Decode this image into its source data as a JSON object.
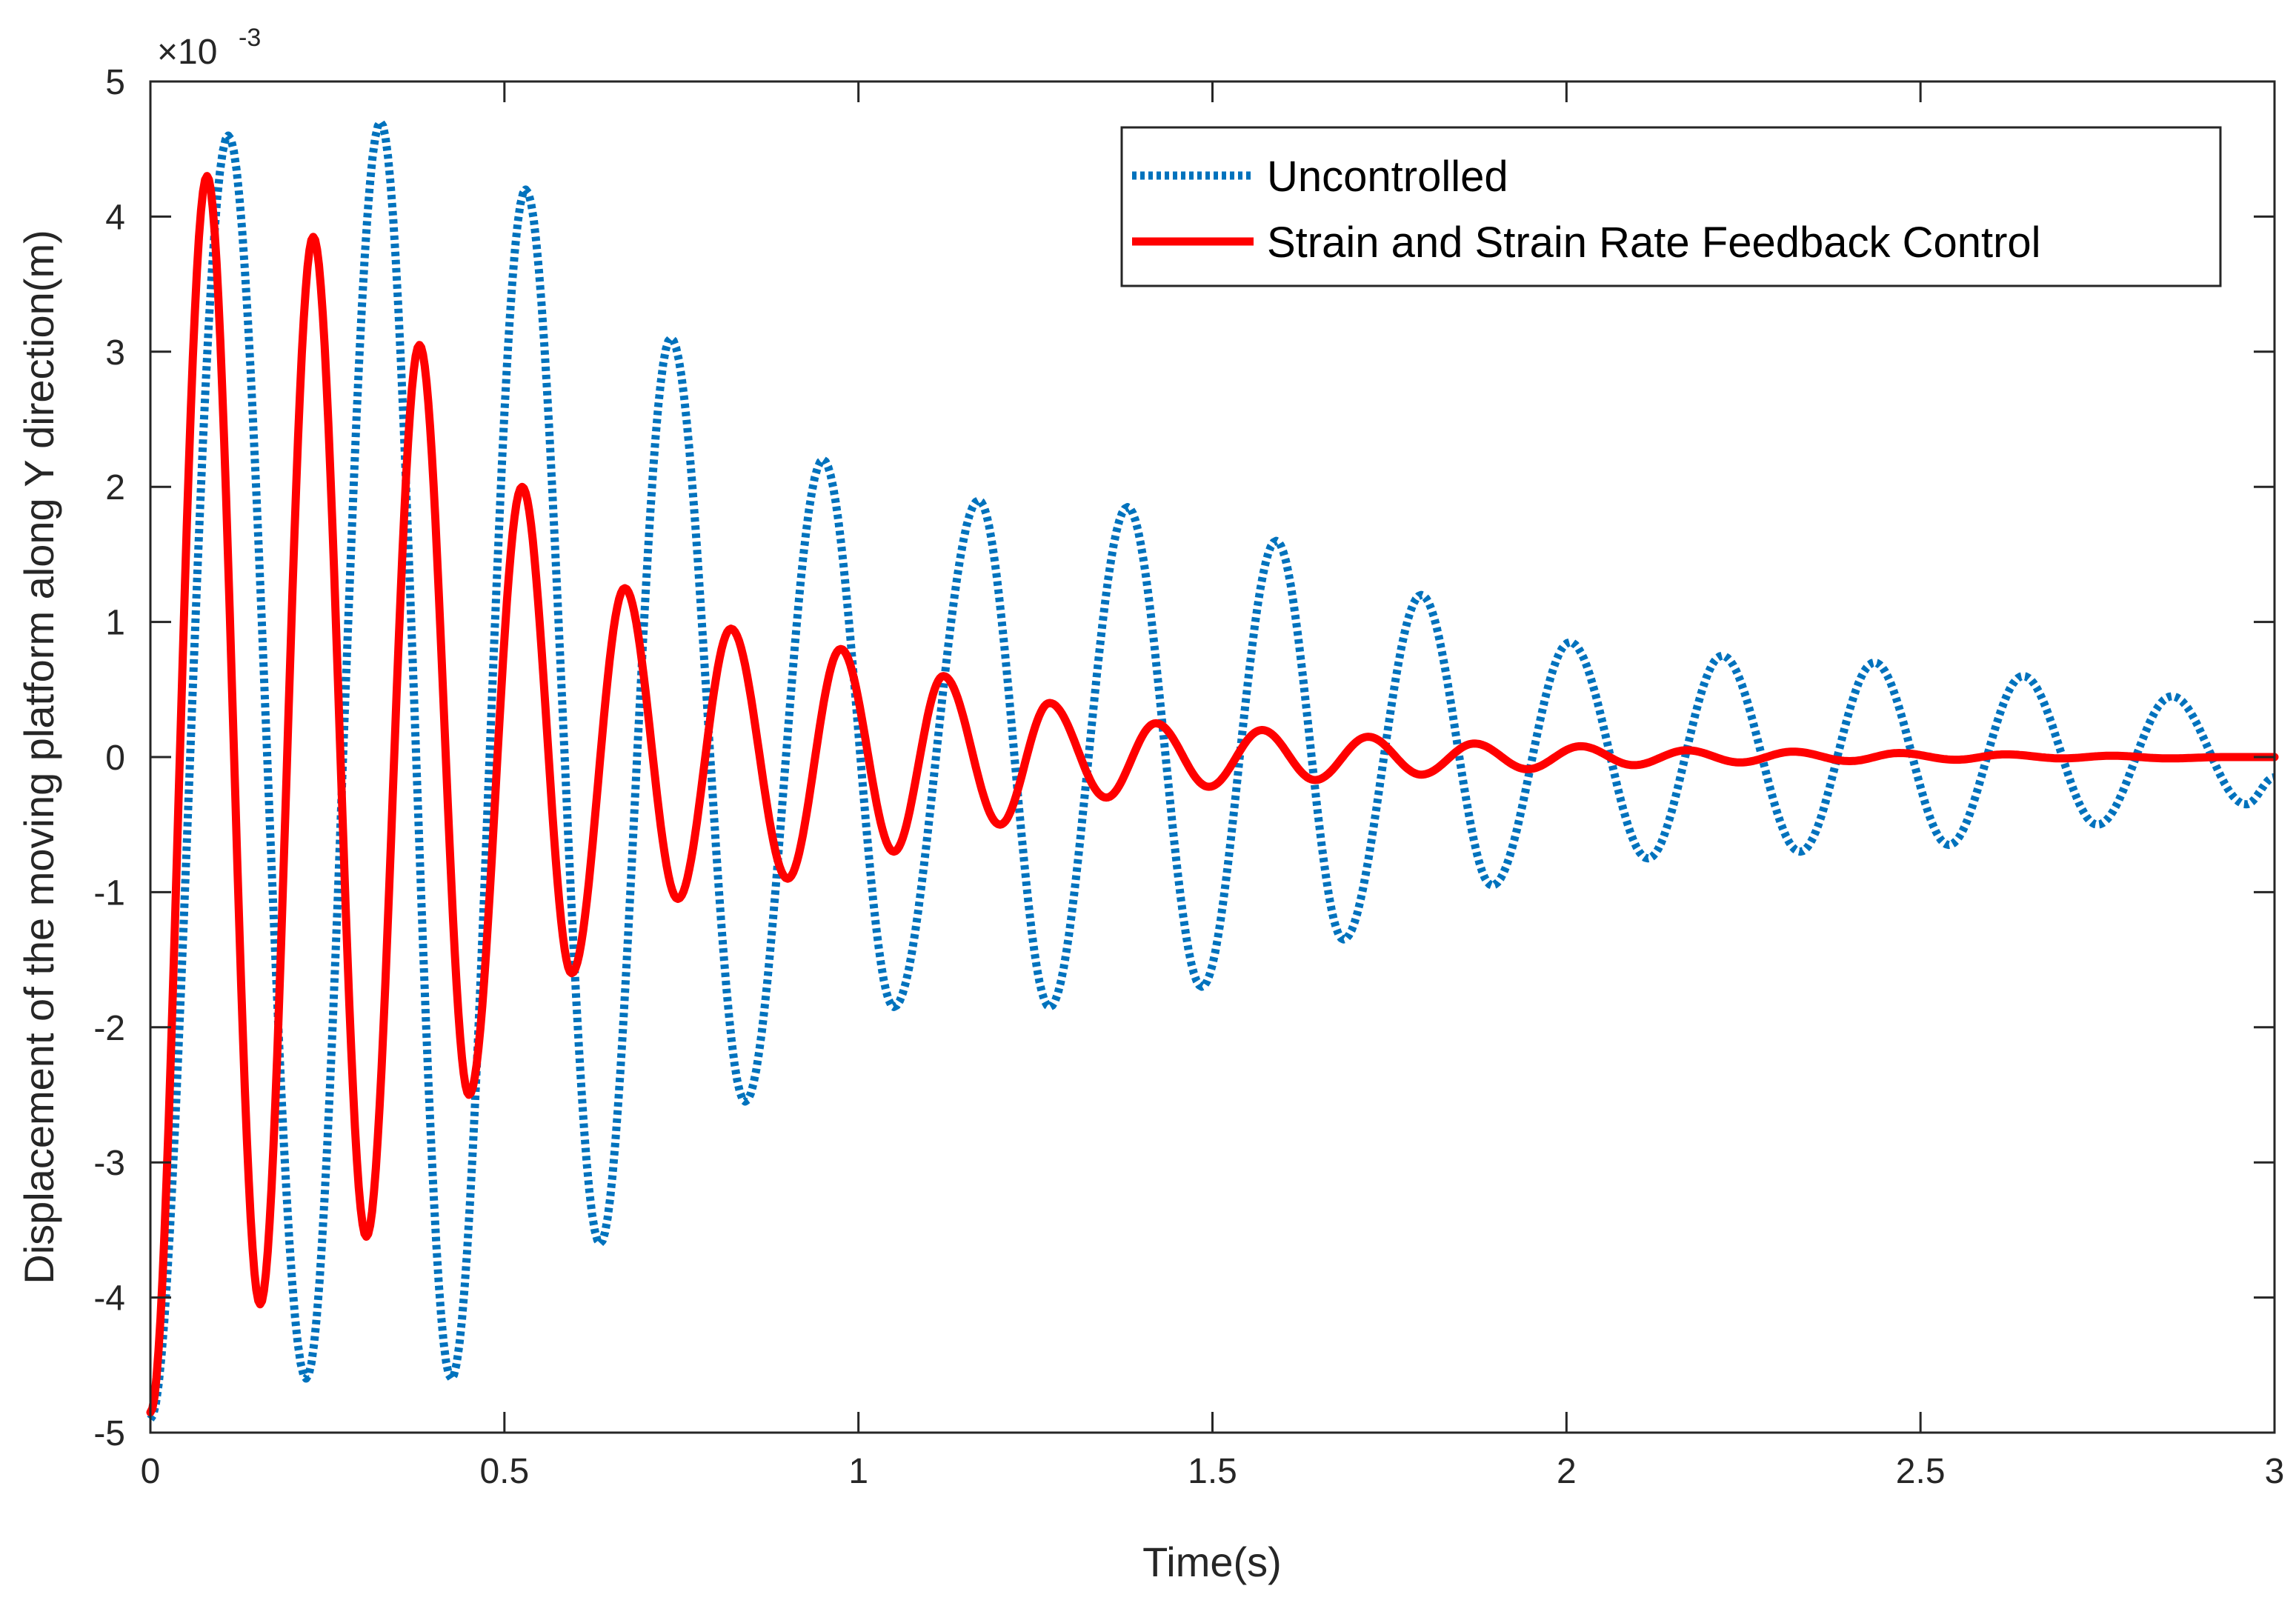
{
  "chart_data": {
    "type": "line",
    "title": "",
    "xlabel": "Time(s)",
    "ylabel": "Displacement of the moving platform along Y direction(m)",
    "y_exponent_prefix": "×10",
    "y_exponent": "-3",
    "xlim": [
      0,
      3
    ],
    "ylim": [
      -5,
      5
    ],
    "xticks": [
      0,
      0.5,
      1,
      1.5,
      2,
      2.5,
      3
    ],
    "xtick_labels": [
      "0",
      "0.5",
      "1",
      "1.5",
      "2",
      "2.5",
      "3"
    ],
    "yticks": [
      -5,
      -4,
      -3,
      -2,
      -1,
      0,
      1,
      2,
      3,
      4,
      5
    ],
    "ytick_labels": [
      "-5",
      "-4",
      "-3",
      "-2",
      "-1",
      "0",
      "1",
      "2",
      "3",
      "4",
      "5"
    ],
    "grid": false,
    "legend_position": "top-right",
    "series": [
      {
        "name": "Uncontrolled",
        "color": "#0072BD",
        "style": "dotted",
        "x": [
          0,
          0.11,
          0.22,
          0.325,
          0.425,
          0.53,
          0.635,
          0.735,
          0.84,
          0.95,
          1.05,
          1.17,
          1.27,
          1.38,
          1.485,
          1.59,
          1.685,
          1.795,
          1.895,
          2.005,
          2.115,
          2.22,
          2.33,
          2.435,
          2.54,
          2.645,
          2.75,
          2.855,
          2.96,
          3.0
        ],
        "y": [
          -4.9,
          4.6,
          -4.6,
          4.7,
          -4.6,
          4.2,
          -3.6,
          3.1,
          -2.55,
          2.2,
          -1.85,
          1.9,
          -1.85,
          1.85,
          -1.7,
          1.6,
          -1.35,
          1.2,
          -0.95,
          0.85,
          -0.75,
          0.75,
          -0.7,
          0.7,
          -0.65,
          0.6,
          -0.5,
          0.45,
          -0.35,
          -0.15
        ]
      },
      {
        "name": "Strain and Strain Rate Feedback Control",
        "color": "#FF0000",
        "style": "solid",
        "x": [
          0,
          0.08,
          0.155,
          0.23,
          0.305,
          0.38,
          0.45,
          0.525,
          0.595,
          0.67,
          0.745,
          0.82,
          0.9,
          0.975,
          1.05,
          1.12,
          1.2,
          1.27,
          1.35,
          1.42,
          1.495,
          1.57,
          1.645,
          1.72,
          1.795,
          1.87,
          1.945,
          2.02,
          2.095,
          2.17,
          2.245,
          2.32,
          2.4,
          2.47,
          2.55,
          2.62,
          2.7,
          2.77,
          2.85,
          2.93,
          3.0
        ],
        "y": [
          -4.85,
          4.3,
          -4.05,
          3.85,
          -3.55,
          3.05,
          -2.5,
          2.0,
          -1.6,
          1.25,
          -1.05,
          0.95,
          -0.9,
          0.8,
          -0.7,
          0.6,
          -0.5,
          0.4,
          -0.3,
          0.25,
          -0.22,
          0.2,
          -0.17,
          0.15,
          -0.13,
          0.1,
          -0.09,
          0.08,
          -0.06,
          0.05,
          -0.04,
          0.04,
          -0.03,
          0.03,
          -0.02,
          0.02,
          -0.01,
          0.01,
          -0.01,
          0.0,
          0.0
        ]
      }
    ]
  }
}
